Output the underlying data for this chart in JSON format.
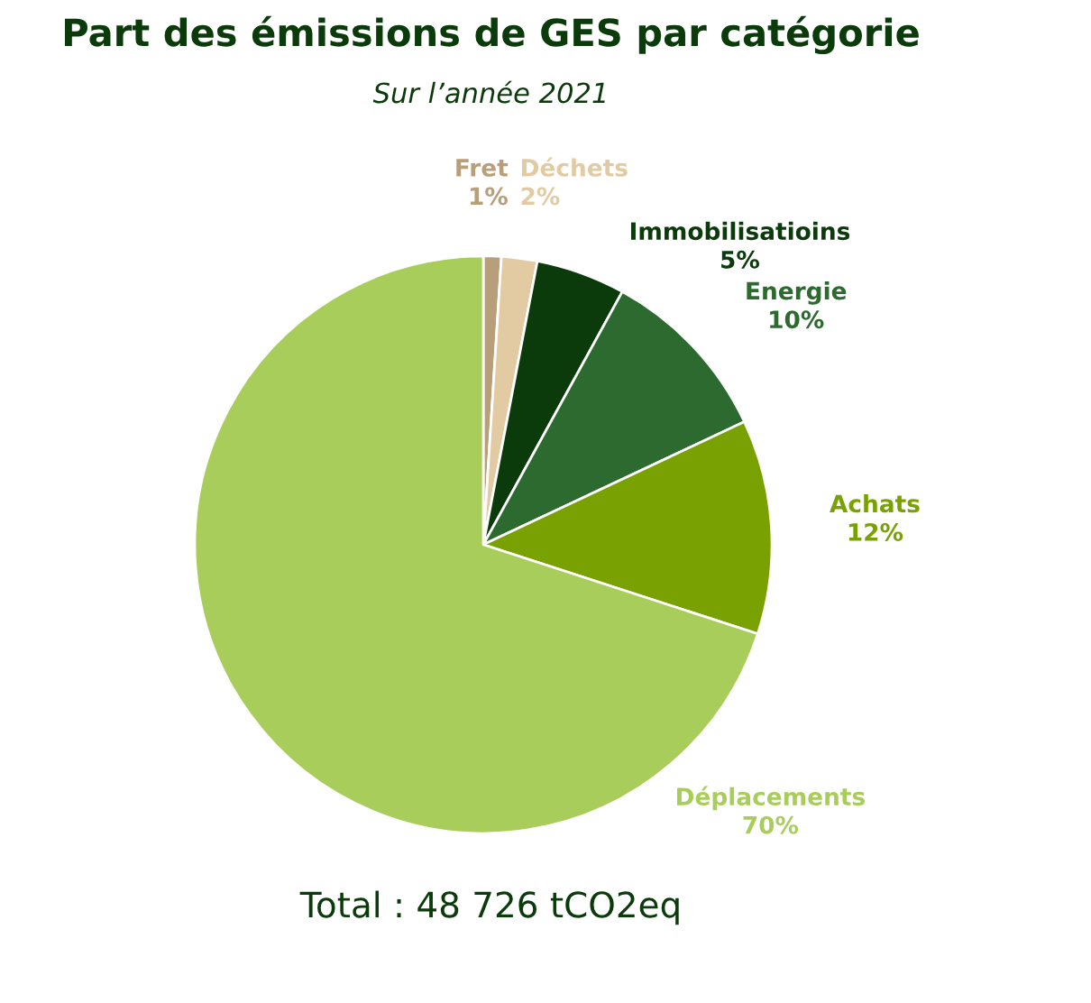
{
  "chart_data": {
    "type": "pie",
    "title": "Part des émissions de GES par catégorie",
    "subtitle": "Sur l’année 2021",
    "categories": [
      "Fret",
      "Déchets",
      "Immobilisatioins",
      "Energie",
      "Achats",
      "Déplacements"
    ],
    "values": [
      1,
      2,
      5,
      10,
      12,
      70
    ],
    "value_labels": [
      "1%",
      "2%",
      "5%",
      "10%",
      "12%",
      "70%"
    ],
    "colors": [
      "#b89f7c",
      "#e2cba3",
      "#0b3a0b",
      "#2c6a2f",
      "#79a102",
      "#a9cd5b"
    ],
    "annotations": [
      "Total : 48 726 tCO2eq"
    ]
  }
}
